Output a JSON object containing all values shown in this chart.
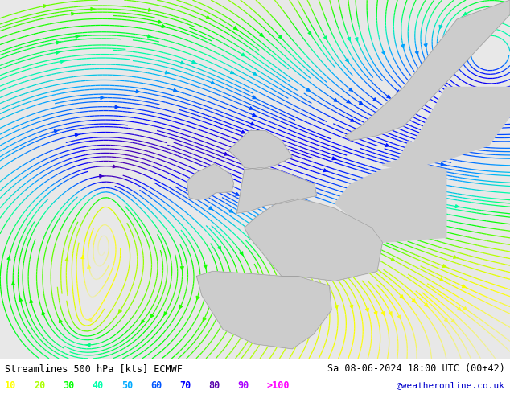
{
  "title_left": "Streamlines 500 hPa [kts] ECMWF",
  "title_right": "Sa 08-06-2024 18:00 UTC (00+42)",
  "credit": "@weatheronline.co.uk",
  "legend_values": [
    "10",
    "20",
    "30",
    "40",
    "50",
    "60",
    "70",
    "80",
    "90",
    ">100"
  ],
  "legend_colors": [
    "#ffff00",
    "#aaff00",
    "#00ff00",
    "#00ffaa",
    "#00aaff",
    "#0055ff",
    "#0000ff",
    "#5500aa",
    "#aa00ff",
    "#ff00ff"
  ],
  "background_color": "#e8e8e8",
  "figsize": [
    6.34,
    4.9
  ],
  "dpi": 100,
  "speed_colormap_levels": [
    0,
    10,
    20,
    30,
    40,
    50,
    60,
    70,
    80,
    90,
    100
  ],
  "speed_colormap_colors": [
    "#e8e8e8",
    "#ffff00",
    "#aaff00",
    "#00ff00",
    "#00ffaa",
    "#00aaff",
    "#0055ff",
    "#0000ff",
    "#5500aa",
    "#aa00ff",
    "#ff00ff"
  ]
}
